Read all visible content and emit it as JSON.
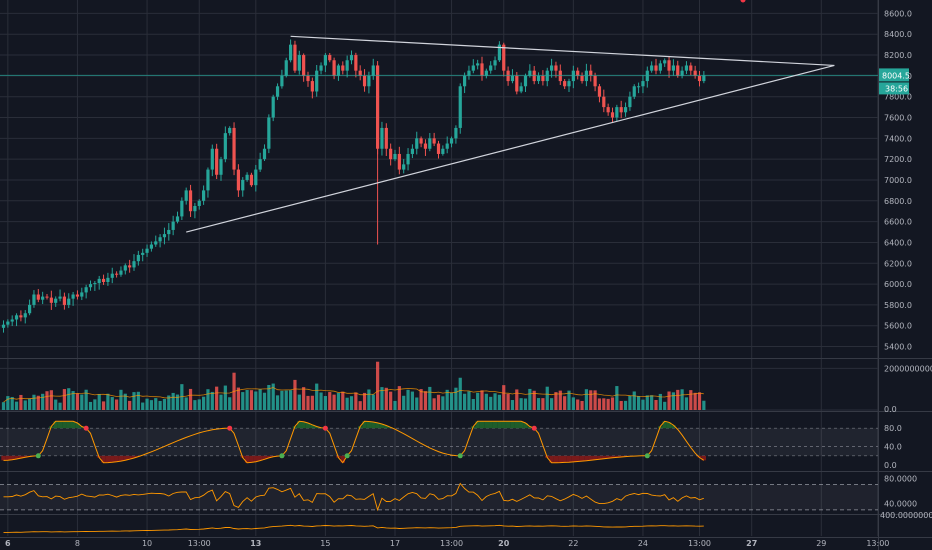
{
  "chart_data": {
    "type": "candlestick",
    "title": "",
    "main": {
      "price_ticks": [
        5400,
        5600,
        5800,
        6000,
        6200,
        6400,
        6600,
        6800,
        7000,
        7200,
        7400,
        7600,
        7800,
        8000,
        8200,
        8400,
        8600
      ],
      "price_tick_labels": [
        "5400.0",
        "5600.0",
        "5800.0",
        "6000.0",
        "6200.0",
        "6400.0",
        "6600.0",
        "6800.0",
        "7000.0",
        "7200.0",
        "7400.0",
        "7600.0",
        "7800.0",
        "8000.0",
        "8200.0",
        "8400.0",
        "8600.0"
      ],
      "ylim": [
        5290,
        8700
      ],
      "last_price": 8004.5,
      "last_price_label": "8004.5",
      "countdown_label": "38:56",
      "candle_count": 162,
      "closes": [
        5610,
        5640,
        5660,
        5700,
        5680,
        5720,
        5800,
        5900,
        5850,
        5880,
        5870,
        5820,
        5860,
        5880,
        5800,
        5860,
        5900,
        5880,
        5920,
        5970,
        6000,
        6010,
        6050,
        6020,
        6060,
        6100,
        6090,
        6130,
        6180,
        6160,
        6220,
        6280,
        6300,
        6340,
        6380,
        6410,
        6450,
        6480,
        6520,
        6600,
        6650,
        6800,
        6900,
        6700,
        6750,
        6800,
        6900,
        7100,
        7300,
        7050,
        7200,
        7450,
        7500,
        7100,
        6900,
        7000,
        7050,
        6950,
        7100,
        7200,
        7300,
        7600,
        7800,
        7900,
        8000,
        8150,
        8300,
        8050,
        8200,
        8000,
        7950,
        7850,
        8050,
        8100,
        8200,
        8150,
        8000,
        8100,
        8050,
        8150,
        8200,
        8050,
        8000,
        7900,
        8000,
        8100,
        7300,
        7500,
        7300,
        7200,
        7250,
        7100,
        7150,
        7250,
        7300,
        7400,
        7350,
        7300,
        7400,
        7350,
        7250,
        7300,
        7350,
        7400,
        7500,
        7900,
        8000,
        8050,
        8100,
        8120,
        8000,
        8050,
        8100,
        8150,
        8300,
        8050,
        7950,
        8000,
        7850,
        7900,
        8000,
        8050,
        7950,
        8000,
        7950,
        8050,
        8100,
        8050,
        7950,
        7900,
        7950,
        8050,
        8000,
        7950,
        8050,
        8000,
        7900,
        7800,
        7700,
        7650,
        7600,
        7700,
        7650,
        7700,
        7800,
        7900,
        7900,
        7950,
        8050,
        8100,
        8050,
        8120,
        8150,
        8050,
        8100,
        8000,
        8050,
        8100,
        8050,
        8000,
        7950,
        8004.5
      ],
      "trendline_upper": {
        "from_index": 66,
        "from_price": 8380,
        "to_index": 191,
        "to_price": 8100
      },
      "trendline_lower": {
        "from_index": 42,
        "from_price": 6500,
        "to_index": 191,
        "to_price": 8100
      },
      "horizontal_line_price": 8004.5
    },
    "volume": {
      "tick_labels": [
        "2000000000.0",
        "0.0"
      ],
      "ylim": [
        0,
        2400000000
      ]
    },
    "stoch_rsi": {
      "tick_labels": [
        "80.0",
        "40.0",
        "0.0"
      ],
      "ylim": [
        0,
        100
      ],
      "upper_band": 80,
      "lower_band": 20,
      "buy_signal_indices": [
        8,
        64,
        79,
        105,
        148
      ],
      "sell_signal_indices": [
        19,
        52,
        74,
        122,
        170
      ]
    },
    "rsi": {
      "tick_labels": [
        "80.0000",
        "40.0000"
      ],
      "ylim": [
        25,
        90
      ],
      "upper_band": 70,
      "lower_band": 30
    },
    "bottom_indicator": {
      "tick_labels": [
        "400.00000000"
      ]
    },
    "x_labels": [
      {
        "index": 1,
        "label": "6",
        "bold": true
      },
      {
        "index": 17,
        "label": "8",
        "bold": false
      },
      {
        "index": 33,
        "label": "10",
        "bold": false
      },
      {
        "index": 45,
        "label": "13:00",
        "bold": false
      },
      {
        "index": 58,
        "label": "13",
        "bold": true
      },
      {
        "index": 74,
        "label": "15",
        "bold": false
      },
      {
        "index": 90,
        "label": "17",
        "bold": false
      },
      {
        "index": 103,
        "label": "13:00",
        "bold": false
      },
      {
        "index": 115,
        "label": "20",
        "bold": true
      },
      {
        "index": 131,
        "label": "22",
        "bold": false
      },
      {
        "index": 147,
        "label": "24",
        "bold": false
      },
      {
        "index": 160,
        "label": "13:00",
        "bold": false
      },
      {
        "index": 172,
        "label": "27",
        "bold": true
      },
      {
        "index": 188,
        "label": "29",
        "bold": false
      },
      {
        "index": 201,
        "label": "13:00",
        "bold": false
      }
    ],
    "colors": {
      "up": "#26a69a",
      "down": "#ef5350",
      "background": "#131722",
      "grid": "#2a2e39",
      "trendline": "#d1d4dc",
      "indicator_line": "#ff9800",
      "price_label_bg": "#26a69a",
      "stoch_up_fill": "#1e5d2a",
      "stoch_down_fill": "#7a1a1a"
    },
    "grid": true
  }
}
